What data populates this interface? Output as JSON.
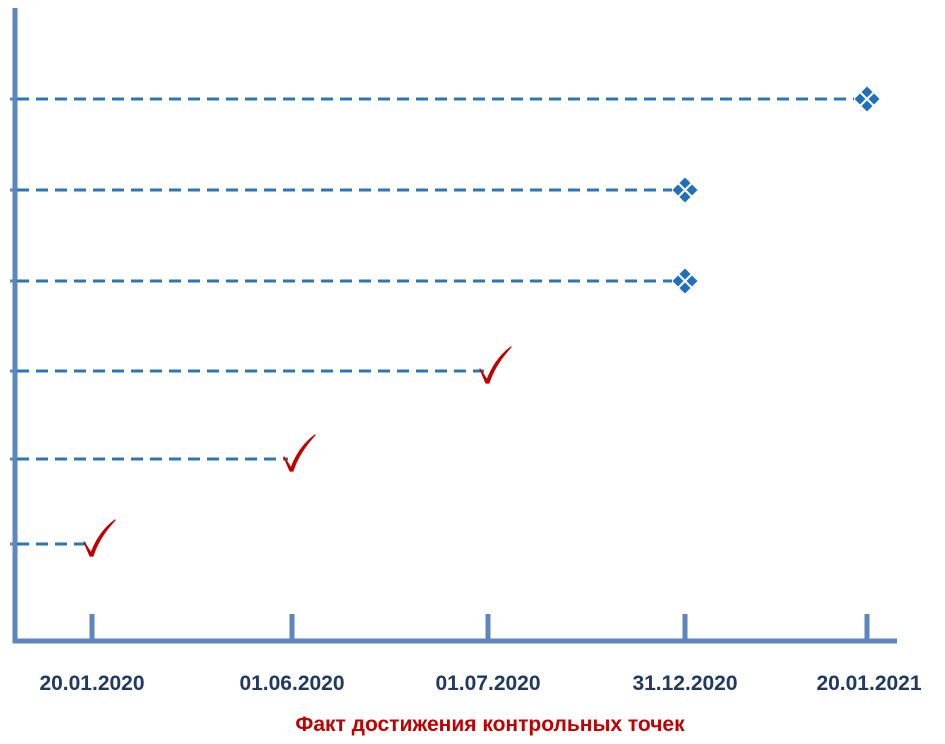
{
  "chart_data": {
    "type": "scatter",
    "title": "",
    "xlabel": "Факт достижения контрольных точек",
    "ylabel": "",
    "x_categories": [
      "20.01.2020",
      "01.06.2020",
      "01.07.2020",
      "31.12.2020",
      "20.01.2021"
    ],
    "points": [
      {
        "x": "20.01.2020",
        "status": "achieved",
        "marker": "check-mark"
      },
      {
        "x": "01.06.2020",
        "status": "achieved",
        "marker": "check-mark"
      },
      {
        "x": "01.07.2020",
        "status": "achieved",
        "marker": "check-mark"
      },
      {
        "x": "31.12.2020",
        "status": "planned",
        "marker": "four-diamond"
      },
      {
        "x": "31.12.2020",
        "status": "planned",
        "marker": "four-diamond"
      },
      {
        "x": "20.01.2021",
        "status": "planned",
        "marker": "four-diamond"
      }
    ],
    "grid": false,
    "colors": {
      "axis": "#5b86c0",
      "leader_line": "#2e75b6",
      "achieved": "#c00000",
      "planned": "#1f6fbf",
      "tick_label": "#1f3864",
      "caption": "#c00000"
    }
  }
}
